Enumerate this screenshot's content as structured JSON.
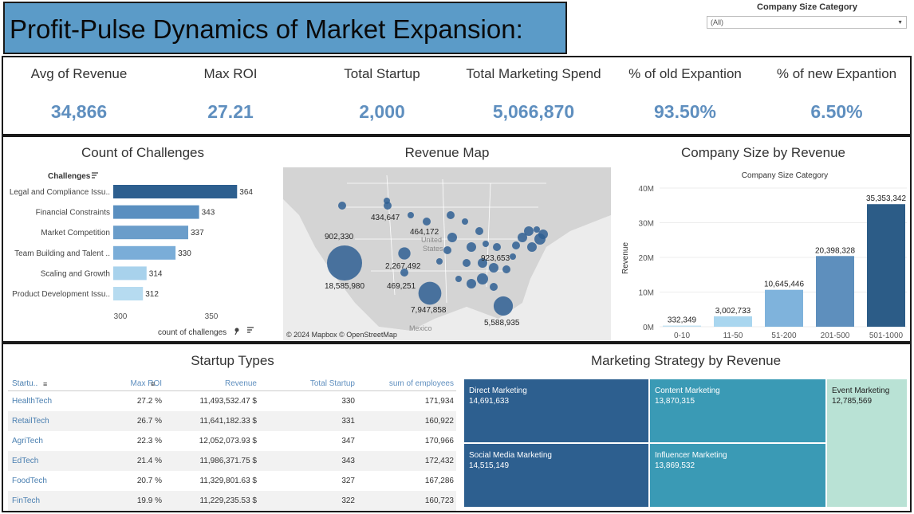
{
  "header": {
    "title": "Profit-Pulse Dynamics of Market Expansion:",
    "filter_label": "Company Size Category",
    "filter_value": "(All)"
  },
  "kpis": [
    {
      "label": "Avg of Revenue",
      "value": "34,866"
    },
    {
      "label": "Max ROI",
      "value": "27.21"
    },
    {
      "label": "Total Startup",
      "value": "2,000"
    },
    {
      "label": "Total Marketing Spend",
      "value": "5,066,870"
    },
    {
      "label": "% of old Expantion",
      "value": "93.50%"
    },
    {
      "label": "% of new Expantion",
      "value": "6.50%"
    }
  ],
  "challenges": {
    "title": "Count of Challenges",
    "dim_label": "Challenges",
    "xlabel": "count of challenges",
    "ticks": [
      "300",
      "350"
    ]
  },
  "revenue_map": {
    "title": "Revenue Map",
    "credit": "© 2024 Mapbox © OpenStreetMap",
    "country_label": [
      "United",
      "States"
    ],
    "mexico_label": "Mexico",
    "bubbles": [
      {
        "label": "18,585,980",
        "value": 18585980
      },
      {
        "label": "7,947,858",
        "value": 7947858
      },
      {
        "label": "5,588,935",
        "value": 5588935
      },
      {
        "label": "2,267,492",
        "value": 2267492
      },
      {
        "label": "923,653",
        "value": 923653
      },
      {
        "label": "902,330",
        "value": 902330
      },
      {
        "label": "469,251",
        "value": 469251
      },
      {
        "label": "464,172",
        "value": 464172
      },
      {
        "label": "434,647",
        "value": 434647
      }
    ]
  },
  "company_size": {
    "title": "Company Size by Revenue",
    "subtitle": "Company Size Category",
    "ylabel": "Revenue",
    "yticks": [
      "0M",
      "10M",
      "20M",
      "30M",
      "40M"
    ]
  },
  "startup_types": {
    "title": "Startup Types",
    "columns": [
      "Startu..",
      "Max ROI",
      "Revenue",
      "Total Startup",
      "sum of employees"
    ],
    "rows": [
      {
        "name": "HealthTech",
        "roi": "27.2 %",
        "revenue": "11,493,532.47 $",
        "total": "330",
        "employees": "171,934"
      },
      {
        "name": "RetailTech",
        "roi": "26.7 %",
        "revenue": "11,641,182.33 $",
        "total": "331",
        "employees": "160,922"
      },
      {
        "name": "AgriTech",
        "roi": "22.3 %",
        "revenue": "12,052,073.93 $",
        "total": "347",
        "employees": "170,966"
      },
      {
        "name": "EdTech",
        "roi": "21.4 %",
        "revenue": "11,986,371.75 $",
        "total": "343",
        "employees": "172,432"
      },
      {
        "name": "FoodTech",
        "roi": "20.7 %",
        "revenue": "11,329,801.63 $",
        "total": "327",
        "employees": "167,286"
      },
      {
        "name": "FinTech",
        "roi": "19.9 %",
        "revenue": "11,229,235.53 $",
        "total": "322",
        "employees": "160,723"
      }
    ]
  },
  "marketing": {
    "title": "Marketing Strategy by Revenue",
    "tiles": [
      {
        "name": "Direct Marketing",
        "value": "14,691,633",
        "color": "#2d5f8f"
      },
      {
        "name": "Content Marketing",
        "value": "13,870,315",
        "color": "#3a9ab5"
      },
      {
        "name": "Event Marketing",
        "value": "12,785,569",
        "color": "#b9e2d5"
      },
      {
        "name": "Social Media Marketing",
        "value": "14,515,149",
        "color": "#2d5f8f"
      },
      {
        "name": "Influencer Marketing",
        "value": "13,869,532",
        "color": "#3a9ab5"
      }
    ]
  },
  "chart_data": [
    {
      "type": "bar",
      "orientation": "horizontal",
      "title": "Count of Challenges",
      "categories": [
        "Legal and Compliance Issu..",
        "Financial Constraints",
        "Market Competition",
        "Team Building and Talent ..",
        "Scaling and Growth",
        "Product Development Issu.."
      ],
      "values": [
        364,
        343,
        337,
        330,
        314,
        312
      ],
      "xlabel": "count of challenges",
      "xlim": [
        290,
        380
      ],
      "colors": [
        "#2d5f8f",
        "#5a8fc0",
        "#6a9dca",
        "#7aadd8",
        "#a8d2ec",
        "#b6dbf0"
      ]
    },
    {
      "type": "bar",
      "title": "Company Size by Revenue",
      "xlabel": "Company Size Category",
      "ylabel": "Revenue",
      "categories": [
        "0-10",
        "11-50",
        "51-200",
        "201-500",
        "501-1000"
      ],
      "values": [
        332349,
        3002733,
        10645446,
        20398328,
        35353342
      ],
      "labels": [
        "332,349",
        "3,002,733",
        "10,645,446",
        "20,398,328",
        "35,353,342"
      ],
      "ylim": [
        0,
        40000000
      ],
      "colors": [
        "#c3e2f2",
        "#a9d6ef",
        "#7fb3dc",
        "#5e8fbd",
        "#2c5c87"
      ]
    }
  ]
}
